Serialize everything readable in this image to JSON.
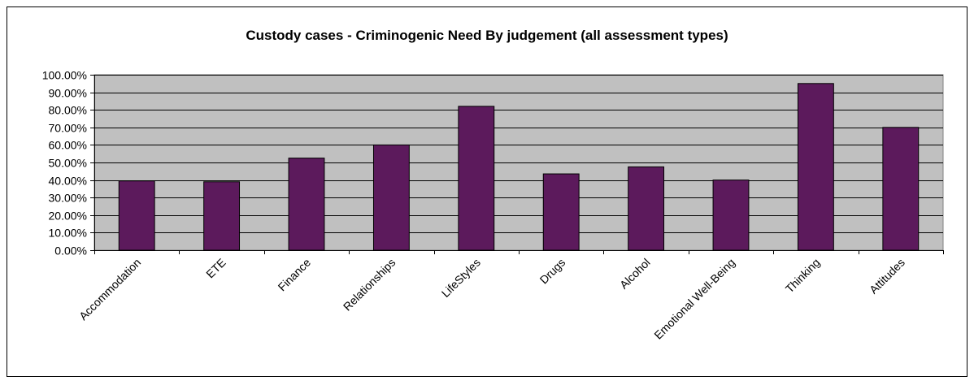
{
  "colors": {
    "plot_background": "#C0C0C0",
    "bar_fill": "#5C1A5C",
    "bar_stroke": "#000000",
    "grid": "#000000"
  },
  "chart_data": {
    "type": "bar",
    "title": "Custody cases - Criminogenic Need By judgement (all assessment types)",
    "xlabel": "",
    "ylabel": "",
    "categories": [
      "Accommodation",
      "ETE",
      "Finance",
      "Relationships",
      "LifeStyles",
      "Drugs",
      "Alcohol",
      "Emotional Well-Being",
      "Thinking",
      "Attitudes"
    ],
    "values": [
      39.5,
      39.0,
      52.5,
      60.0,
      82.0,
      43.5,
      47.5,
      40.0,
      95.0,
      70.0
    ],
    "ylim": [
      0,
      100
    ],
    "yticks": [
      0,
      10,
      20,
      30,
      40,
      50,
      60,
      70,
      80,
      90,
      100
    ],
    "ytick_labels": [
      "0.00%",
      "10.00%",
      "20.00%",
      "30.00%",
      "40.00%",
      "50.00%",
      "60.00%",
      "70.00%",
      "80.00%",
      "90.00%",
      "100.00%"
    ],
    "grid": true,
    "legend": "none"
  }
}
